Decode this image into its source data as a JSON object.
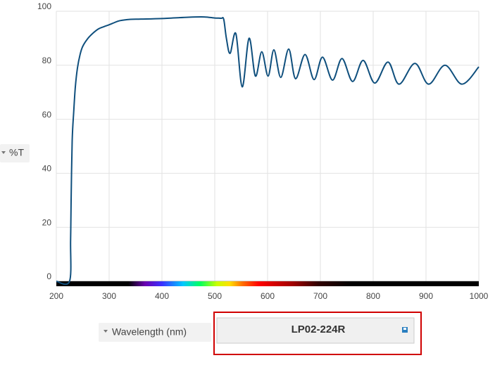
{
  "chart_data": {
    "type": "line",
    "x_label": "Wavelength (nm)",
    "y_label": "%T",
    "xlim": [
      200,
      1000
    ],
    "xticks": [
      200,
      300,
      400,
      500,
      600,
      700,
      800,
      900,
      1000
    ],
    "ylim": [
      0,
      100
    ],
    "yticks": [
      0,
      20,
      40,
      60,
      80,
      100
    ],
    "grid": true,
    "series": [
      {
        "name": "LP02-224R",
        "color": "#0f4f7d",
        "x": [
          200,
          225,
          227,
          228,
          230,
          233,
          236,
          240,
          245,
          250,
          260,
          270,
          280,
          290,
          300,
          310,
          320,
          340,
          360,
          400,
          450,
          480,
          500,
          512,
          517,
          522,
          529,
          540,
          552,
          565,
          577,
          589,
          601,
          612,
          625,
          640,
          653,
          671,
          688,
          704,
          723,
          741,
          761,
          781,
          803,
          828,
          849,
          879,
          905,
          936,
          968,
          1000
        ],
        "values": [
          0,
          0,
          15,
          30,
          52,
          63,
          72,
          79,
          84,
          87,
          90,
          92,
          93.5,
          94.3,
          95,
          95.8,
          96.5,
          97,
          97.1,
          97.3,
          97.8,
          97.9,
          97.5,
          97.4,
          97,
          90,
          84.4,
          91.7,
          72,
          90,
          76,
          85,
          76,
          85.7,
          75.5,
          86,
          75,
          84,
          74.7,
          83,
          74.5,
          82.5,
          74,
          81.8,
          73.4,
          81.2,
          73,
          80.7,
          73,
          80,
          73,
          79.4
        ]
      }
    ]
  }
}
